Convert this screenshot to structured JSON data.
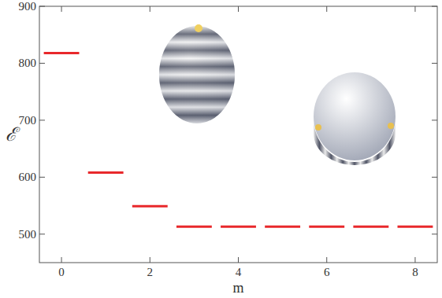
{
  "chart_data": {
    "type": "scatter",
    "marker": "dash",
    "color": "#e8282b",
    "x": [
      0,
      1,
      2,
      3,
      4,
      5,
      6,
      7,
      8
    ],
    "values": [
      818,
      608,
      549,
      513,
      513,
      513,
      513,
      513,
      513
    ],
    "xlim": [
      -0.5,
      8.5
    ],
    "ylim": [
      450,
      900
    ],
    "xticks": [
      0,
      2,
      4,
      6,
      8
    ],
    "yticks": [
      500,
      600,
      700,
      800,
      900
    ],
    "x_label": "m",
    "y_label": "ℰ"
  }
}
